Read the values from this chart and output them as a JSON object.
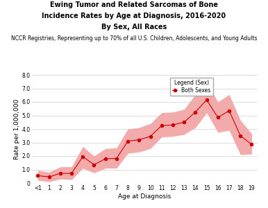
{
  "title_line1": "Ewing Tumor and Related Sarcomas of Bone",
  "title_line2": "Incidence Rates by Age at Diagnosis, 2016-2020",
  "title_line3": "By Sex, All Races",
  "subtitle": "NCCR Registries, Representing up to 70% of all U.S. Children, Adolescents, and Young Adults",
  "xlabel": "Age at Diagnosis",
  "ylabel": "Rate per 1,000,000",
  "ages": [
    "<1",
    "1",
    "2",
    "3",
    "4",
    "5",
    "6",
    "7",
    "8",
    "9",
    "10",
    "11",
    "12",
    "13",
    "14",
    "15",
    "16",
    "17",
    "18",
    "19"
  ],
  "values": [
    0.55,
    0.45,
    0.72,
    0.72,
    1.95,
    1.35,
    1.8,
    1.82,
    3.1,
    3.2,
    3.45,
    4.25,
    4.3,
    4.5,
    5.25,
    6.15,
    4.85,
    5.35,
    3.5,
    2.85
  ],
  "ci_lower": [
    0.2,
    0.1,
    0.3,
    0.25,
    1.1,
    0.75,
    1.1,
    1.1,
    2.2,
    2.3,
    2.55,
    3.4,
    3.45,
    3.6,
    4.1,
    5.2,
    3.75,
    3.9,
    2.1,
    2.15
  ],
  "ci_upper": [
    0.95,
    0.8,
    1.2,
    1.2,
    2.7,
    2.0,
    2.55,
    2.6,
    4.0,
    4.1,
    4.4,
    5.2,
    5.25,
    5.45,
    6.55,
    7.45,
    6.0,
    6.55,
    4.65,
    3.65
  ],
  "line_color": "#cc0000",
  "fill_color": "#f2aaaa",
  "marker": "o",
  "marker_size": 3,
  "ylim": [
    0,
    8.0
  ],
  "yticks": [
    0,
    1.0,
    2.0,
    3.0,
    4.0,
    5.0,
    6.0,
    7.0,
    8.0
  ],
  "legend_title": "Legend (Sex)",
  "legend_label": "Both Sexes",
  "background_color": "#ffffff",
  "grid_color": "#cccccc",
  "title_fontsize": 7.0,
  "subtitle_fontsize": 5.5,
  "axis_label_fontsize": 6.5,
  "tick_fontsize": 5.5,
  "legend_fontsize": 5.5
}
